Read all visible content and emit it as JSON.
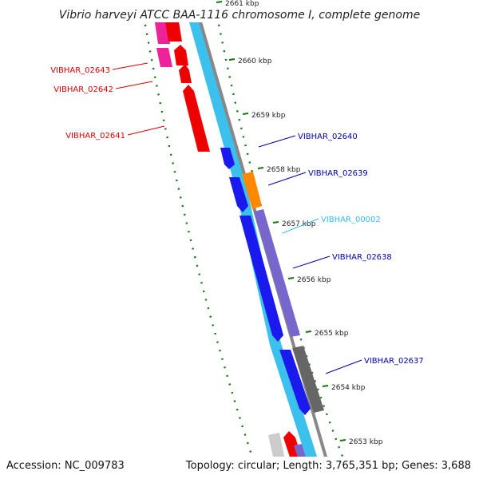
{
  "title": "Vibrio harveyi ATCC BAA-1116 chromosome I, complete genome",
  "accession": "Accession: NC_009783",
  "summary": "Topology: circular; Length: 3,765,351 bp; Genes: 3,688",
  "kbp_labels": [
    {
      "text": "2661 kbp",
      "pos": 2661
    },
    {
      "text": "2660 kbp",
      "pos": 2660
    },
    {
      "text": "2659 kbp",
      "pos": 2659
    },
    {
      "text": "2658 kbp",
      "pos": 2658
    },
    {
      "text": "2657 kbp",
      "pos": 2657
    },
    {
      "text": "2656 kbp",
      "pos": 2656
    },
    {
      "text": "2655 kbp",
      "pos": 2655
    },
    {
      "text": "2654 kbp",
      "pos": 2654
    },
    {
      "text": "2653 kbp",
      "pos": 2653
    }
  ],
  "left_genes": [
    {
      "label": "VIBHAR_02643",
      "color": "#dd0000"
    },
    {
      "label": "VIBHAR_02642",
      "color": "#dd0000"
    },
    {
      "label": "VIBHAR_02641",
      "color": "#dd0000"
    }
  ],
  "right_genes": [
    {
      "label": "VIBHAR_02640",
      "color": "#0000aa"
    },
    {
      "label": "VIBHAR_02639",
      "color": "#0000aa"
    },
    {
      "label": "VIBHAR_00002",
      "color": "#33bbee"
    },
    {
      "label": "VIBHAR_02638",
      "color": "#0000aa"
    },
    {
      "label": "VIBHAR_02637",
      "color": "#0000aa"
    }
  ],
  "colors": {
    "backbone": "#888888",
    "forward_track": "#3cc0ee",
    "forward_cds": "#1a1aee",
    "reverse_cds": "#ee0000",
    "rrna_pink": "#ee2299",
    "orange": "#ff8800",
    "purple": "#7766cc",
    "gray_feature": "#666666",
    "light_gray": "#cccccc",
    "ticks": "#117711"
  }
}
